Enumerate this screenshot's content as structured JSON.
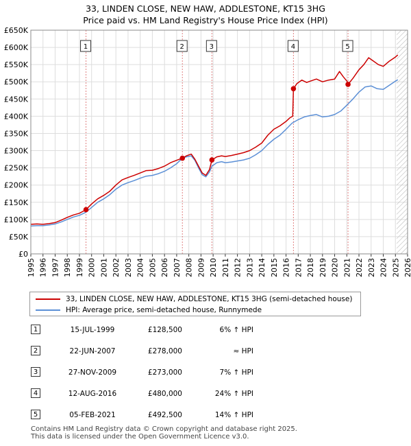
{
  "title": {
    "line1": "33, LINDEN CLOSE, NEW HAW, ADDLESTONE, KT15 3HG",
    "line2": "Price paid vs. HM Land Registry's House Price Index (HPI)"
  },
  "colors": {
    "property": "#cc0000",
    "hpi": "#5b8fd6",
    "grid": "#dddddd",
    "sale_line": "#e08080",
    "future_hatch": "#bbbbbb"
  },
  "chart_data": {
    "type": "line",
    "ylim": [
      0,
      650000
    ],
    "y_ticks": [
      {
        "value": 0,
        "label": "£0"
      },
      {
        "value": 50000,
        "label": "£50K"
      },
      {
        "value": 100000,
        "label": "£100K"
      },
      {
        "value": 150000,
        "label": "£150K"
      },
      {
        "value": 200000,
        "label": "£200K"
      },
      {
        "value": 250000,
        "label": "£250K"
      },
      {
        "value": 300000,
        "label": "£300K"
      },
      {
        "value": 350000,
        "label": "£350K"
      },
      {
        "value": 400000,
        "label": "£400K"
      },
      {
        "value": 450000,
        "label": "£450K"
      },
      {
        "value": 500000,
        "label": "£500K"
      },
      {
        "value": 550000,
        "label": "£550K"
      },
      {
        "value": 600000,
        "label": "£600K"
      },
      {
        "value": 650000,
        "label": "£650K"
      }
    ],
    "xlim": [
      1995,
      2026
    ],
    "x_ticks": [
      "1995",
      "1996",
      "1997",
      "1998",
      "1999",
      "2000",
      "2001",
      "2002",
      "2003",
      "2004",
      "2005",
      "2006",
      "2007",
      "2008",
      "2009",
      "2010",
      "2011",
      "2012",
      "2013",
      "2014",
      "2015",
      "2016",
      "2017",
      "2018",
      "2019",
      "2020",
      "2021",
      "2022",
      "2023",
      "2024",
      "2025",
      "2026"
    ],
    "future_start": 2025.1,
    "series": [
      {
        "name": "33, LINDEN CLOSE, NEW HAW, ADDLESTONE, KT15 3HG (semi-detached house)",
        "color": "#cc0000",
        "points": [
          [
            1995.0,
            86000
          ],
          [
            1995.5,
            87000
          ],
          [
            1996.0,
            86000
          ],
          [
            1996.5,
            88000
          ],
          [
            1997.0,
            91000
          ],
          [
            1997.5,
            98000
          ],
          [
            1998.0,
            106000
          ],
          [
            1998.5,
            113000
          ],
          [
            1999.0,
            118000
          ],
          [
            1999.54,
            128500
          ],
          [
            2000.0,
            145000
          ],
          [
            2000.5,
            160000
          ],
          [
            2001.0,
            170000
          ],
          [
            2001.5,
            182000
          ],
          [
            2002.0,
            200000
          ],
          [
            2002.5,
            215000
          ],
          [
            2003.0,
            222000
          ],
          [
            2003.5,
            228000
          ],
          [
            2004.0,
            235000
          ],
          [
            2004.5,
            242000
          ],
          [
            2005.0,
            243000
          ],
          [
            2005.5,
            248000
          ],
          [
            2006.0,
            255000
          ],
          [
            2006.5,
            265000
          ],
          [
            2007.0,
            272000
          ],
          [
            2007.47,
            278000
          ],
          [
            2007.8,
            285000
          ],
          [
            2008.2,
            290000
          ],
          [
            2008.5,
            275000
          ],
          [
            2008.8,
            255000
          ],
          [
            2009.1,
            235000
          ],
          [
            2009.4,
            228000
          ],
          [
            2009.7,
            245000
          ],
          [
            2009.9,
            273000
          ],
          [
            2010.3,
            282000
          ],
          [
            2010.7,
            285000
          ],
          [
            2011.0,
            283000
          ],
          [
            2011.5,
            286000
          ],
          [
            2012.0,
            290000
          ],
          [
            2012.5,
            294000
          ],
          [
            2013.0,
            300000
          ],
          [
            2013.5,
            310000
          ],
          [
            2014.0,
            322000
          ],
          [
            2014.5,
            345000
          ],
          [
            2015.0,
            362000
          ],
          [
            2015.5,
            372000
          ],
          [
            2016.0,
            385000
          ],
          [
            2016.3,
            395000
          ],
          [
            2016.55,
            400000
          ],
          [
            2016.61,
            480000
          ],
          [
            2016.9,
            495000
          ],
          [
            2017.3,
            505000
          ],
          [
            2017.7,
            498000
          ],
          [
            2018.0,
            502000
          ],
          [
            2018.5,
            508000
          ],
          [
            2019.0,
            500000
          ],
          [
            2019.5,
            505000
          ],
          [
            2020.0,
            508000
          ],
          [
            2020.4,
            530000
          ],
          [
            2020.7,
            515000
          ],
          [
            2021.05,
            500000
          ],
          [
            2021.1,
            492500
          ],
          [
            2021.5,
            510000
          ],
          [
            2022.0,
            535000
          ],
          [
            2022.4,
            550000
          ],
          [
            2022.8,
            570000
          ],
          [
            2023.2,
            560000
          ],
          [
            2023.6,
            550000
          ],
          [
            2024.0,
            545000
          ],
          [
            2024.5,
            560000
          ],
          [
            2025.0,
            572000
          ],
          [
            2025.2,
            578000
          ]
        ]
      },
      {
        "name": "HPI: Average price, semi-detached house, Runnymede",
        "color": "#5b8fd6",
        "points": [
          [
            1995.0,
            81000
          ],
          [
            1995.5,
            82000
          ],
          [
            1996.0,
            82000
          ],
          [
            1996.5,
            84000
          ],
          [
            1997.0,
            87000
          ],
          [
            1997.5,
            93000
          ],
          [
            1998.0,
            100000
          ],
          [
            1998.5,
            107000
          ],
          [
            1999.0,
            112000
          ],
          [
            1999.54,
            121000
          ],
          [
            2000.0,
            135000
          ],
          [
            2000.5,
            150000
          ],
          [
            2001.0,
            160000
          ],
          [
            2001.5,
            172000
          ],
          [
            2002.0,
            188000
          ],
          [
            2002.5,
            200000
          ],
          [
            2003.0,
            207000
          ],
          [
            2003.5,
            213000
          ],
          [
            2004.0,
            220000
          ],
          [
            2004.5,
            226000
          ],
          [
            2005.0,
            228000
          ],
          [
            2005.5,
            233000
          ],
          [
            2006.0,
            240000
          ],
          [
            2006.5,
            250000
          ],
          [
            2007.0,
            262000
          ],
          [
            2007.47,
            278000
          ],
          [
            2007.8,
            282000
          ],
          [
            2008.2,
            285000
          ],
          [
            2008.5,
            272000
          ],
          [
            2008.8,
            250000
          ],
          [
            2009.1,
            230000
          ],
          [
            2009.4,
            224000
          ],
          [
            2009.7,
            238000
          ],
          [
            2009.9,
            255000
          ],
          [
            2010.3,
            265000
          ],
          [
            2010.7,
            268000
          ],
          [
            2011.0,
            265000
          ],
          [
            2011.5,
            267000
          ],
          [
            2012.0,
            270000
          ],
          [
            2012.5,
            273000
          ],
          [
            2013.0,
            278000
          ],
          [
            2013.5,
            288000
          ],
          [
            2014.0,
            300000
          ],
          [
            2014.5,
            318000
          ],
          [
            2015.0,
            333000
          ],
          [
            2015.5,
            345000
          ],
          [
            2016.0,
            362000
          ],
          [
            2016.5,
            380000
          ],
          [
            2017.0,
            390000
          ],
          [
            2017.5,
            398000
          ],
          [
            2018.0,
            402000
          ],
          [
            2018.5,
            405000
          ],
          [
            2019.0,
            398000
          ],
          [
            2019.5,
            400000
          ],
          [
            2020.0,
            405000
          ],
          [
            2020.5,
            415000
          ],
          [
            2021.0,
            432000
          ],
          [
            2021.5,
            450000
          ],
          [
            2022.0,
            470000
          ],
          [
            2022.5,
            485000
          ],
          [
            2023.0,
            488000
          ],
          [
            2023.5,
            480000
          ],
          [
            2024.0,
            478000
          ],
          [
            2024.5,
            490000
          ],
          [
            2025.0,
            502000
          ],
          [
            2025.2,
            506000
          ]
        ]
      }
    ],
    "sales": [
      {
        "id": "1",
        "x": 1999.54,
        "price": 128500
      },
      {
        "id": "2",
        "x": 2007.47,
        "price": 278000
      },
      {
        "id": "3",
        "x": 2009.9,
        "price": 273000
      },
      {
        "id": "4",
        "x": 2016.61,
        "price": 480000
      },
      {
        "id": "5",
        "x": 2021.1,
        "price": 492500
      }
    ]
  },
  "legend": {
    "property": "33, LINDEN CLOSE, NEW HAW, ADDLESTONE, KT15 3HG (semi-detached house)",
    "hpi": "HPI: Average price, semi-detached house, Runnymede"
  },
  "sales_table": [
    {
      "num": "1",
      "date": "15-JUL-1999",
      "price": "£128,500",
      "hpi": "6% ↑ HPI"
    },
    {
      "num": "2",
      "date": "22-JUN-2007",
      "price": "£278,000",
      "hpi": "≈ HPI"
    },
    {
      "num": "3",
      "date": "27-NOV-2009",
      "price": "£273,000",
      "hpi": "7% ↑ HPI"
    },
    {
      "num": "4",
      "date": "12-AUG-2016",
      "price": "£480,000",
      "hpi": "24% ↑ HPI"
    },
    {
      "num": "5",
      "date": "05-FEB-2021",
      "price": "£492,500",
      "hpi": "14% ↑ HPI"
    }
  ],
  "footer": {
    "line1": "Contains HM Land Registry data © Crown copyright and database right 2025.",
    "line2": "This data is licensed under the Open Government Licence v3.0."
  }
}
